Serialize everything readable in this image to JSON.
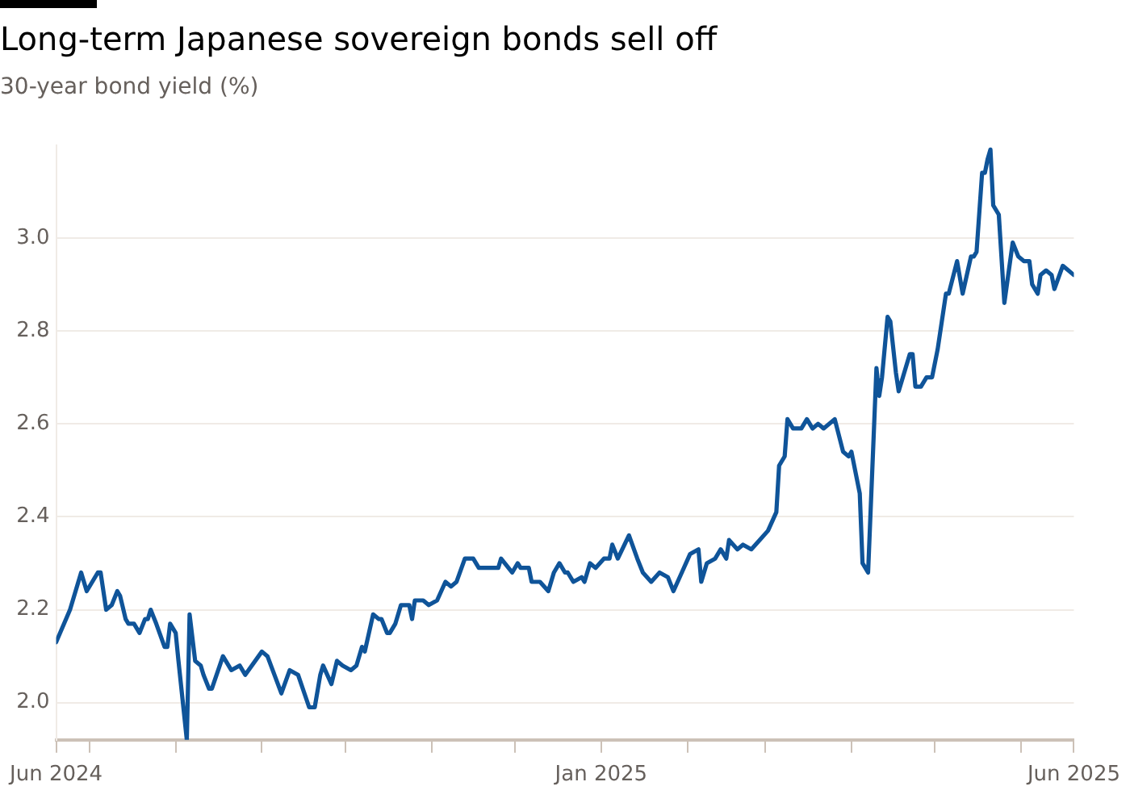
{
  "chart_data": {
    "type": "line",
    "title": "Long-term Japanese sovereign bonds sell off",
    "subtitle": "30-year bond yield (%)",
    "x": [
      "2024-06-19",
      "2024-06-24",
      "2024-06-28",
      "2024-06-30",
      "2024-07-04",
      "2024-07-05",
      "2024-07-07",
      "2024-07-09",
      "2024-07-11",
      "2024-07-12",
      "2024-07-14",
      "2024-07-15",
      "2024-07-17",
      "2024-07-19",
      "2024-07-21",
      "2024-07-22",
      "2024-07-23",
      "2024-07-25",
      "2024-07-28",
      "2024-07-29",
      "2024-07-30",
      "2024-08-01",
      "2024-08-02",
      "2024-08-05",
      "2024-08-06",
      "2024-08-08",
      "2024-08-10",
      "2024-08-11",
      "2024-08-13",
      "2024-08-14",
      "2024-08-18",
      "2024-08-21",
      "2024-08-24",
      "2024-08-26",
      "2024-09-01",
      "2024-09-03",
      "2024-09-08",
      "2024-09-11",
      "2024-09-14",
      "2024-09-18",
      "2024-09-20",
      "2024-09-22",
      "2024-09-23",
      "2024-09-26",
      "2024-09-28",
      "2024-09-30",
      "2024-10-03",
      "2024-10-05",
      "2024-10-07",
      "2024-10-08",
      "2024-10-11",
      "2024-10-13",
      "2024-10-14",
      "2024-10-16",
      "2024-10-17",
      "2024-10-19",
      "2024-10-21",
      "2024-10-24",
      "2024-10-25",
      "2024-10-26",
      "2024-10-29",
      "2024-10-31",
      "2024-11-03",
      "2024-11-06",
      "2024-11-08",
      "2024-11-10",
      "2024-11-13",
      "2024-11-16",
      "2024-11-18",
      "2024-11-23",
      "2024-11-25",
      "2024-11-26",
      "2024-11-30",
      "2024-12-02",
      "2024-12-03",
      "2024-12-06",
      "2024-12-07",
      "2024-12-10",
      "2024-12-13",
      "2024-12-15",
      "2024-12-17",
      "2024-12-19",
      "2024-12-20",
      "2024-12-22",
      "2024-12-25",
      "2024-12-26",
      "2024-12-28",
      "2024-12-30",
      "2025-01-02",
      "2025-01-04",
      "2025-01-05",
      "2025-01-07",
      "2025-01-11",
      "2025-01-14",
      "2025-01-16",
      "2025-01-19",
      "2025-01-22",
      "2025-01-25",
      "2025-01-27",
      "2025-01-30",
      "2025-02-02",
      "2025-02-05",
      "2025-02-06",
      "2025-02-08",
      "2025-02-11",
      "2025-02-13",
      "2025-02-15",
      "2025-02-16",
      "2025-02-19",
      "2025-02-21",
      "2025-02-24",
      "2025-02-27",
      "2025-03-02",
      "2025-03-05",
      "2025-03-06",
      "2025-03-08",
      "2025-03-09",
      "2025-03-11",
      "2025-03-14",
      "2025-03-16",
      "2025-03-18",
      "2025-03-20",
      "2025-03-22",
      "2025-03-26",
      "2025-03-29",
      "2025-03-31",
      "2025-04-01",
      "2025-04-04",
      "2025-04-05",
      "2025-04-07",
      "2025-04-10",
      "2025-04-11",
      "2025-04-12",
      "2025-04-14",
      "2025-04-15",
      "2025-04-17",
      "2025-04-18",
      "2025-04-22",
      "2025-04-23",
      "2025-04-24",
      "2025-04-26",
      "2025-04-28",
      "2025-04-30",
      "2025-05-02",
      "2025-05-05",
      "2025-05-06",
      "2025-05-09",
      "2025-05-11",
      "2025-05-14",
      "2025-05-15",
      "2025-05-16",
      "2025-05-18",
      "2025-05-19",
      "2025-05-20",
      "2025-05-21",
      "2025-05-22",
      "2025-05-24",
      "2025-05-26",
      "2025-05-29",
      "2025-05-31",
      "2025-06-02",
      "2025-06-04",
      "2025-06-05",
      "2025-06-07",
      "2025-06-08",
      "2025-06-10",
      "2025-06-12",
      "2025-06-13",
      "2025-06-16",
      "2025-06-18",
      "2025-06-20"
    ],
    "series": [
      {
        "color": "#0f5499",
        "values": [
          2.13,
          2.2,
          2.28,
          2.24,
          2.28,
          2.28,
          2.2,
          2.21,
          2.24,
          2.23,
          2.18,
          2.17,
          2.17,
          2.15,
          2.18,
          2.18,
          2.2,
          2.17,
          2.12,
          2.12,
          2.17,
          2.15,
          2.09,
          1.92,
          2.19,
          2.09,
          2.08,
          2.06,
          2.03,
          2.03,
          2.1,
          2.07,
          2.08,
          2.06,
          2.11,
          2.1,
          2.02,
          2.07,
          2.06,
          1.99,
          1.99,
          2.06,
          2.08,
          2.04,
          2.09,
          2.08,
          2.07,
          2.08,
          2.12,
          2.11,
          2.19,
          2.18,
          2.18,
          2.15,
          2.15,
          2.17,
          2.21,
          2.21,
          2.18,
          2.22,
          2.22,
          2.21,
          2.22,
          2.26,
          2.25,
          2.26,
          2.31,
          2.31,
          2.29,
          2.29,
          2.29,
          2.31,
          2.28,
          2.3,
          2.29,
          2.29,
          2.26,
          2.26,
          2.24,
          2.28,
          2.3,
          2.28,
          2.28,
          2.26,
          2.27,
          2.26,
          2.3,
          2.29,
          2.31,
          2.31,
          2.34,
          2.31,
          2.36,
          2.31,
          2.28,
          2.26,
          2.28,
          2.27,
          2.24,
          2.28,
          2.32,
          2.33,
          2.26,
          2.3,
          2.31,
          2.33,
          2.31,
          2.35,
          2.33,
          2.34,
          2.33,
          2.35,
          2.37,
          2.41,
          2.51,
          2.53,
          2.61,
          2.59,
          2.59,
          2.61,
          2.59,
          2.6,
          2.59,
          2.61,
          2.54,
          2.53,
          2.54,
          2.45,
          2.3,
          2.28,
          2.72,
          2.66,
          2.7,
          2.83,
          2.82,
          2.71,
          2.67,
          2.75,
          2.75,
          2.68,
          2.68,
          2.7,
          2.7,
          2.76,
          2.88,
          2.88,
          2.95,
          2.88,
          2.96,
          2.96,
          2.97,
          3.14,
          3.14,
          3.17,
          3.19,
          3.07,
          3.05,
          2.86,
          2.99,
          2.96,
          2.95,
          2.95,
          2.9,
          2.88,
          2.92,
          2.93,
          2.92,
          2.89,
          2.94,
          2.93,
          2.92
        ]
      }
    ],
    "xlim": [
      "2024-06-19",
      "2025-06-20"
    ],
    "xticks": [
      {
        "value": "2024-06-19",
        "label": "Jun 2024"
      },
      {
        "value": "2024-07-01",
        "label": null
      },
      {
        "value": "2024-08-01",
        "label": null
      },
      {
        "value": "2024-09-01",
        "label": null
      },
      {
        "value": "2024-10-01",
        "label": null
      },
      {
        "value": "2024-11-01",
        "label": null
      },
      {
        "value": "2024-12-01",
        "label": null
      },
      {
        "value": "2025-01-01",
        "label": "Jan 2025"
      },
      {
        "value": "2025-02-01",
        "label": null
      },
      {
        "value": "2025-03-01",
        "label": null
      },
      {
        "value": "2025-04-01",
        "label": null
      },
      {
        "value": "2025-05-01",
        "label": null
      },
      {
        "value": "2025-06-01",
        "label": null
      },
      {
        "value": "2025-06-20",
        "label": "Jun 2025"
      }
    ],
    "ylim": [
      1.92,
      3.2
    ],
    "yticks": [
      {
        "value": 2,
        "label": "2.0"
      },
      {
        "value": 2.2,
        "label": "2.2"
      },
      {
        "value": 2.4,
        "label": "2.4"
      },
      {
        "value": 2.6,
        "label": "2.6"
      },
      {
        "value": 2.8,
        "label": "2.8"
      },
      {
        "value": 3,
        "label": "3.0"
      }
    ],
    "grid": "y",
    "legend": false,
    "marker": "none",
    "line_style": "solid"
  }
}
